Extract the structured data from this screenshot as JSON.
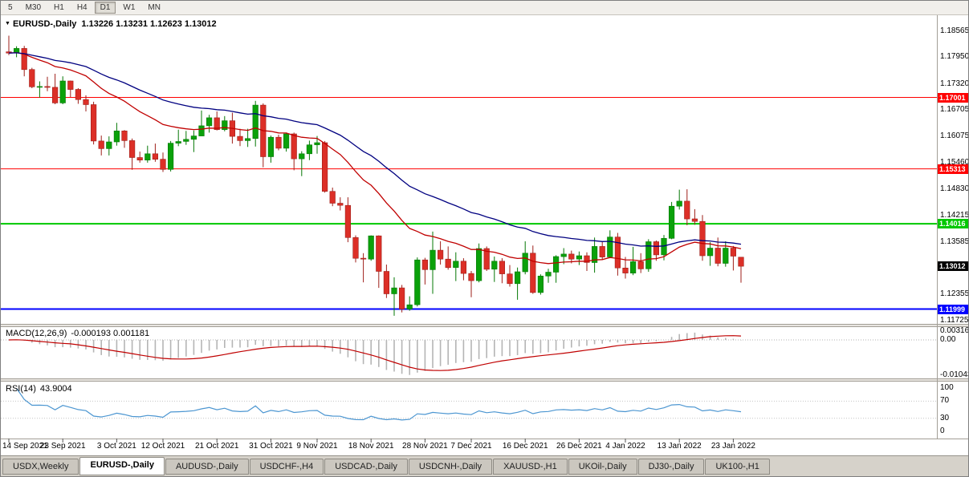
{
  "toolbar": {
    "timeframes": [
      "5",
      "M30",
      "H1",
      "H4",
      "D1",
      "W1",
      "MN"
    ],
    "active_timeframe": "D1"
  },
  "tabs": {
    "items": [
      {
        "label": "USDX,Weekly",
        "active": false
      },
      {
        "label": "EURUSD-,Daily",
        "active": true
      },
      {
        "label": "AUDUSD-,Daily",
        "active": false
      },
      {
        "label": "USDCHF-,H4",
        "active": false
      },
      {
        "label": "USDCAD-,Daily",
        "active": false
      },
      {
        "label": "USDCNH-,Daily",
        "active": false
      },
      {
        "label": "XAUUSD-,H1",
        "active": false
      },
      {
        "label": "UKOil-,Daily",
        "active": false
      },
      {
        "label": "DJ30-,Daily",
        "active": false
      },
      {
        "label": "UK100-,H1",
        "active": false
      }
    ]
  },
  "chart_data": {
    "type": "candlestick",
    "symbol": "EURUSD-",
    "timeframe": "Daily",
    "title": "EURUSD-,Daily",
    "ohlc_text": "1.13226 1.13231 1.12623 1.13012",
    "last": {
      "open": "1.13226",
      "high": "1.13231",
      "low": "1.12623",
      "close": "1.13012"
    },
    "current_price": "1.13012",
    "price_axis_range": [
      1.1167,
      1.1887
    ],
    "price_axis_ticks": [
      "1.18565",
      "1.17950",
      "1.17320",
      "1.16705",
      "1.16075",
      "1.15460",
      "1.14830",
      "1.14215",
      "1.13585",
      "1.12970",
      "1.12355",
      "1.11725"
    ],
    "levels": [
      {
        "label": "1.17001",
        "value": 1.17001,
        "color": "#ff0000",
        "width": 1
      },
      {
        "label": "1.15313",
        "value": 1.15313,
        "color": "#ff0000",
        "width": 1
      },
      {
        "label": "1.14016",
        "value": 1.14016,
        "color": "#00c800",
        "width": 2
      },
      {
        "label": "1.11999",
        "value": 1.11999,
        "color": "#0000ff",
        "width": 2
      }
    ],
    "date_ticks": [
      {
        "label": "14 Sep 2021",
        "i": 0
      },
      {
        "label": "23 Sep 2021",
        "i": 7
      },
      {
        "label": "3 Oct 2021",
        "i": 14
      },
      {
        "label": "12 Oct 2021",
        "i": 20
      },
      {
        "label": "21 Oct 2021",
        "i": 27
      },
      {
        "label": "31 Oct 2021",
        "i": 34
      },
      {
        "label": "9 Nov 2021",
        "i": 40
      },
      {
        "label": "18 Nov 2021",
        "i": 47
      },
      {
        "label": "28 Nov 2021",
        "i": 54
      },
      {
        "label": "7 Dec 2021",
        "i": 60
      },
      {
        "label": "16 Dec 2021",
        "i": 67
      },
      {
        "label": "26 Dec 2021",
        "i": 74
      },
      {
        "label": "4 Jan 2022",
        "i": 80
      },
      {
        "label": "13 Jan 2022",
        "i": 87
      },
      {
        "label": "23 Jan 2022",
        "i": 94
      }
    ],
    "overlays": [
      {
        "name": "fast-ma",
        "period": 20,
        "color": "#c00000"
      },
      {
        "name": "slow-ma",
        "period": 40,
        "color": "#000080"
      }
    ],
    "indicators": {
      "macd": {
        "label": "MACD(12,26,9)",
        "values_text": "-0.000193 0.001181",
        "fast": 12,
        "slow": 26,
        "signal": 9,
        "axis_ticks": [
          "0.00316",
          "0.00",
          "-0.01043"
        ]
      },
      "rsi": {
        "label": "RSI(14)",
        "value_text": "43.9004",
        "period": 14,
        "axis_ticks": [
          "100",
          "70",
          "30",
          "0"
        ],
        "guide_levels": [
          70,
          30
        ]
      }
    },
    "colors": {
      "up": "#0aa10a",
      "up_border": "#067806",
      "down": "#dc2f27",
      "down_border": "#9e1f1a",
      "macd_hist": "#b5b5b5",
      "macd_signal": "#c00000",
      "rsi_line": "#4c96d1",
      "current_tag": "#000000"
    },
    "candles_ohlc": [
      [
        1.1808,
        1.1846,
        1.18,
        1.1805
      ],
      [
        1.1805,
        1.1821,
        1.1795,
        1.1816
      ],
      [
        1.1816,
        1.1822,
        1.175,
        1.1766
      ],
      [
        1.1766,
        1.177,
        1.1722,
        1.1725
      ],
      [
        1.1725,
        1.1738,
        1.17,
        1.1726
      ],
      [
        1.1726,
        1.1749,
        1.1715,
        1.1724
      ],
      [
        1.1724,
        1.1756,
        1.1684,
        1.1687
      ],
      [
        1.1687,
        1.175,
        1.1684,
        1.1739
      ],
      [
        1.1739,
        1.174,
        1.1701,
        1.1719
      ],
      [
        1.1719,
        1.1722,
        1.1685,
        1.1695
      ],
      [
        1.1695,
        1.1705,
        1.1667,
        1.1683
      ],
      [
        1.1683,
        1.169,
        1.1589,
        1.1597
      ],
      [
        1.1597,
        1.161,
        1.1563,
        1.1579
      ],
      [
        1.1579,
        1.1608,
        1.1563,
        1.1595
      ],
      [
        1.1595,
        1.164,
        1.1586,
        1.1621
      ],
      [
        1.1621,
        1.1623,
        1.1581,
        1.1598
      ],
      [
        1.1598,
        1.1603,
        1.1529,
        1.1558
      ],
      [
        1.1558,
        1.1572,
        1.1546,
        1.1552
      ],
      [
        1.1552,
        1.1586,
        1.1546,
        1.1567
      ],
      [
        1.1567,
        1.1591,
        1.1548,
        1.1554
      ],
      [
        1.1554,
        1.157,
        1.1524,
        1.153
      ],
      [
        1.153,
        1.1597,
        1.1525,
        1.1592
      ],
      [
        1.1592,
        1.1624,
        1.1585,
        1.1596
      ],
      [
        1.1596,
        1.1621,
        1.1588,
        1.1601
      ],
      [
        1.1601,
        1.1622,
        1.1571,
        1.1609
      ],
      [
        1.1609,
        1.1669,
        1.1609,
        1.1633
      ],
      [
        1.1633,
        1.1659,
        1.1617,
        1.1652
      ],
      [
        1.1652,
        1.1667,
        1.1622,
        1.1624
      ],
      [
        1.1624,
        1.1656,
        1.162,
        1.1645
      ],
      [
        1.1645,
        1.1664,
        1.1591,
        1.1608
      ],
      [
        1.1608,
        1.1626,
        1.1585,
        1.1598
      ],
      [
        1.1598,
        1.1626,
        1.1583,
        1.1603
      ],
      [
        1.1603,
        1.1692,
        1.1584,
        1.1682
      ],
      [
        1.1682,
        1.1686,
        1.1535,
        1.156
      ],
      [
        1.156,
        1.161,
        1.1546,
        1.1606
      ],
      [
        1.1606,
        1.1612,
        1.1575,
        1.158
      ],
      [
        1.158,
        1.1617,
        1.1572,
        1.1614
      ],
      [
        1.1614,
        1.1617,
        1.1528,
        1.1555
      ],
      [
        1.1555,
        1.1573,
        1.1514,
        1.1567
      ],
      [
        1.1567,
        1.1598,
        1.1552,
        1.1588
      ],
      [
        1.1588,
        1.1609,
        1.1567,
        1.1593
      ],
      [
        1.1593,
        1.1597,
        1.1475,
        1.1478
      ],
      [
        1.1478,
        1.1487,
        1.1443,
        1.145
      ],
      [
        1.145,
        1.1464,
        1.1433,
        1.1445
      ],
      [
        1.1445,
        1.1464,
        1.1358,
        1.1369
      ],
      [
        1.1369,
        1.1374,
        1.131,
        1.132
      ],
      [
        1.132,
        1.1332,
        1.1263,
        1.1318
      ],
      [
        1.1318,
        1.1374,
        1.1314,
        1.1373
      ],
      [
        1.1373,
        1.1374,
        1.125,
        1.1289
      ],
      [
        1.1289,
        1.1305,
        1.1226,
        1.1236
      ],
      [
        1.1236,
        1.1275,
        1.1184,
        1.125
      ],
      [
        1.125,
        1.1257,
        1.1192,
        1.12
      ],
      [
        1.12,
        1.123,
        1.1196,
        1.121
      ],
      [
        1.121,
        1.1322,
        1.1206,
        1.1316
      ],
      [
        1.1316,
        1.1321,
        1.1258,
        1.1293
      ],
      [
        1.1293,
        1.1383,
        1.1236,
        1.1339
      ],
      [
        1.1339,
        1.136,
        1.1305,
        1.1318
      ],
      [
        1.1318,
        1.1348,
        1.1293,
        1.1298
      ],
      [
        1.1298,
        1.1334,
        1.1266,
        1.1313
      ],
      [
        1.1313,
        1.132,
        1.1268,
        1.1284
      ],
      [
        1.1284,
        1.129,
        1.1228,
        1.1267
      ],
      [
        1.1267,
        1.1355,
        1.1263,
        1.1343
      ],
      [
        1.1343,
        1.1348,
        1.129,
        1.1294
      ],
      [
        1.1294,
        1.1324,
        1.1264,
        1.1313
      ],
      [
        1.1313,
        1.132,
        1.1261,
        1.1283
      ],
      [
        1.1283,
        1.1304,
        1.1253,
        1.126
      ],
      [
        1.126,
        1.1298,
        1.1222,
        1.1288
      ],
      [
        1.1288,
        1.136,
        1.1282,
        1.1332
      ],
      [
        1.1332,
        1.135,
        1.1236,
        1.1239
      ],
      [
        1.1239,
        1.1282,
        1.1234,
        1.1278
      ],
      [
        1.1278,
        1.1295,
        1.1262,
        1.1287
      ],
      [
        1.1287,
        1.1327,
        1.1262,
        1.1324
      ],
      [
        1.1324,
        1.1344,
        1.1306,
        1.133
      ],
      [
        1.133,
        1.1338,
        1.1308,
        1.1318
      ],
      [
        1.1318,
        1.1336,
        1.1304,
        1.1326
      ],
      [
        1.1326,
        1.1334,
        1.129,
        1.131
      ],
      [
        1.131,
        1.1369,
        1.1286,
        1.1348
      ],
      [
        1.1348,
        1.136,
        1.1316,
        1.1323
      ],
      [
        1.1323,
        1.1386,
        1.132,
        1.137
      ],
      [
        1.137,
        1.138,
        1.1279,
        1.1297
      ],
      [
        1.1297,
        1.1323,
        1.1272,
        1.1285
      ],
      [
        1.1285,
        1.1347,
        1.128,
        1.1312
      ],
      [
        1.1312,
        1.1332,
        1.1285,
        1.1295
      ],
      [
        1.1295,
        1.1365,
        1.1288,
        1.1359
      ],
      [
        1.1359,
        1.1362,
        1.1314,
        1.1328
      ],
      [
        1.1328,
        1.1375,
        1.1315,
        1.1367
      ],
      [
        1.1367,
        1.1453,
        1.1365,
        1.1443
      ],
      [
        1.1443,
        1.1482,
        1.1435,
        1.1455
      ],
      [
        1.1455,
        1.1483,
        1.1398,
        1.1413
      ],
      [
        1.1413,
        1.1436,
        1.1399,
        1.1407
      ],
      [
        1.1407,
        1.1422,
        1.1314,
        1.1326
      ],
      [
        1.1326,
        1.1358,
        1.1302,
        1.1344
      ],
      [
        1.1344,
        1.1369,
        1.1301,
        1.1308
      ],
      [
        1.1308,
        1.136,
        1.13,
        1.1344
      ],
      [
        1.1344,
        1.1349,
        1.1291,
        1.1325
      ],
      [
        1.13226,
        1.13231,
        1.12623,
        1.13012
      ]
    ]
  }
}
